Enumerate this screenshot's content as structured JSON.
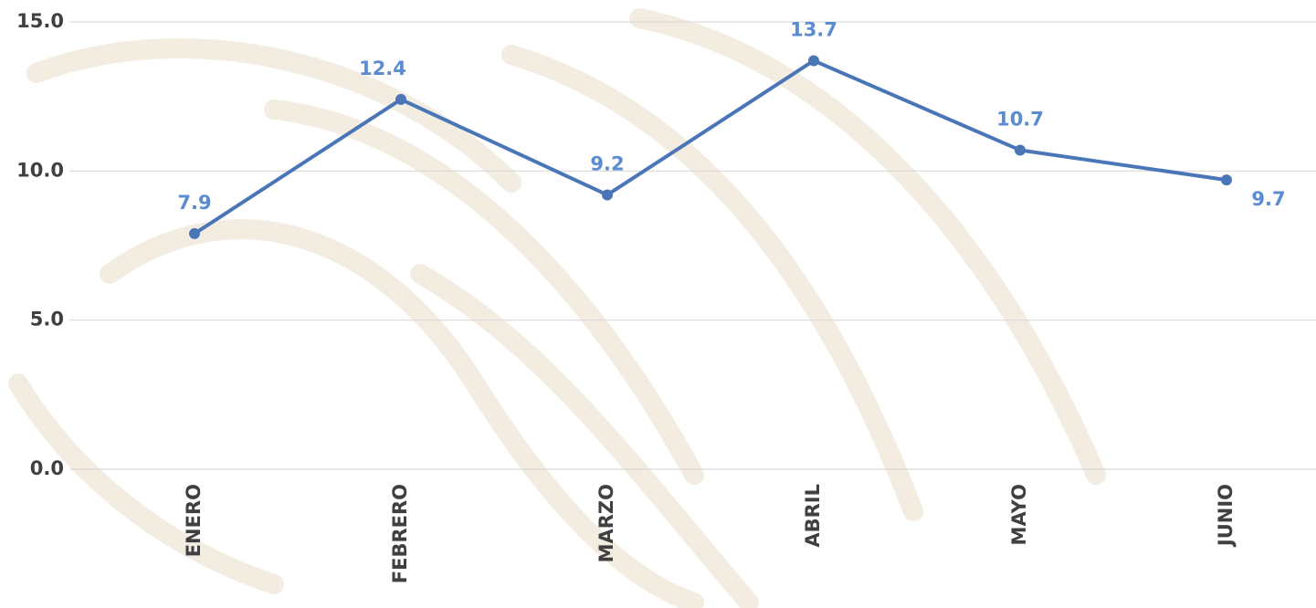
{
  "chart_data": {
    "type": "line",
    "categories": [
      "ENERO",
      "FEBRERO",
      "MARZO",
      "ABRIL",
      "MAYO",
      "JUNIO"
    ],
    "series": [
      {
        "color": "#4a76b8",
        "values": [
          7.9,
          12.4,
          9.2,
          13.7,
          10.7,
          9.7
        ]
      }
    ],
    "ylim": [
      0,
      15
    ],
    "yticks": [
      {
        "value": 0,
        "label": "0.0"
      },
      {
        "value": 5,
        "label": "5.0"
      },
      {
        "value": 10,
        "label": "10.0"
      },
      {
        "value": 15,
        "label": "15.0"
      }
    ],
    "grid": true
  }
}
